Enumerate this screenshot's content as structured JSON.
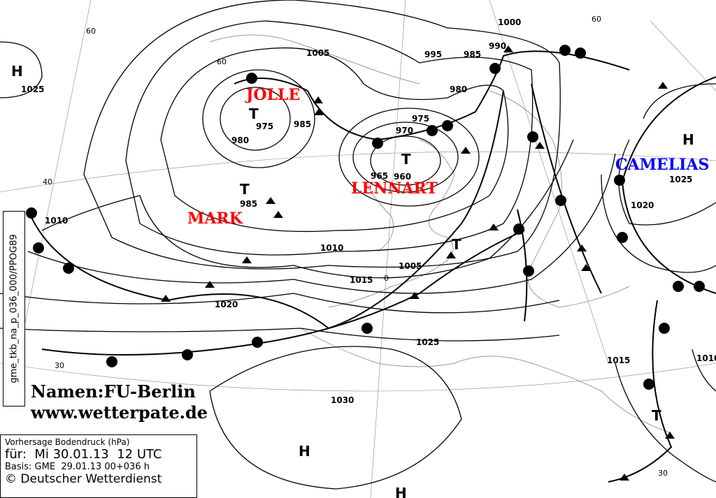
{
  "map": {
    "pressure_labels": [
      "1025",
      "1005",
      "995",
      "985",
      "990",
      "1000",
      "980",
      "975",
      "985",
      "980",
      "975",
      "970",
      "965",
      "960",
      "985",
      "1010",
      "1010",
      "1005",
      "1015",
      "1020",
      "1025",
      "1030",
      "1025",
      "1020",
      "1015",
      "1010"
    ],
    "lat_labels": [
      "60",
      "60",
      "40",
      "60",
      "30",
      "30",
      "0"
    ],
    "centers": [
      "H",
      "T",
      "T",
      "T",
      "T",
      "H",
      "H",
      "H",
      "T"
    ],
    "lows": {
      "jolle": "JOLLE",
      "lennart": "LENNART",
      "mark": "MARK"
    },
    "highs": {
      "camelias": "CAMELIAS"
    },
    "colors": {
      "low_name": "#ff0000",
      "high_name": "#0000ff",
      "isobar": "#000000"
    }
  },
  "side_label": "gme_tkb_na_p_036_000/PPOG89",
  "credit": {
    "names": "Namen:FU-Berlin",
    "url": "www.wetterpate.de"
  },
  "info": {
    "title": "Vorhersage Bodendruck (hPa)",
    "valid": "für:  Mi 30.01.13  12 UTC",
    "basis": "Basis: GME  29.01.13 00+036 h",
    "copyright": "© Deutscher Wetterdienst"
  }
}
